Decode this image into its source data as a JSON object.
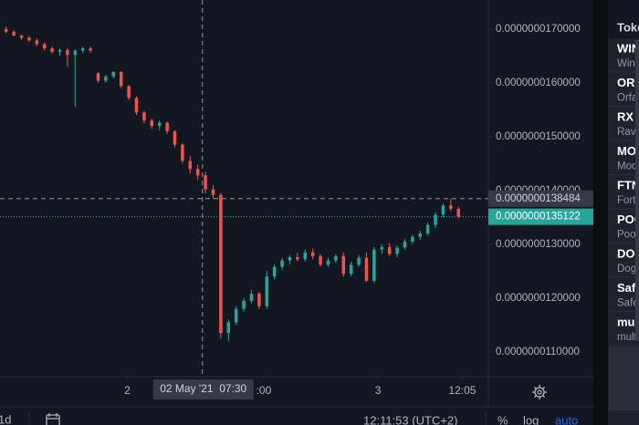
{
  "chart_data": {
    "type": "candlestick",
    "up_color": "#26a69a",
    "down_color": "#ef5350",
    "xlim": [
      -0.8,
      62.9
    ],
    "ylim": [
      1.054e-08,
      1.754e-08
    ],
    "yticks": [
      {
        "value": 1.1e-08,
        "label": "0.0000000110000"
      },
      {
        "value": 1.2e-08,
        "label": "0.0000000120000"
      },
      {
        "value": 1.3e-08,
        "label": "0.0000000130000"
      },
      {
        "value": 1.4e-08,
        "label": "0.0000000140000"
      },
      {
        "value": 1.5e-08,
        "label": "0.0000000150000"
      },
      {
        "value": 1.6e-08,
        "label": "0.0000000160000"
      },
      {
        "value": 1.7e-08,
        "label": "0.0000000170000"
      }
    ],
    "xticks": [
      {
        "value": 15.8,
        "label": "2"
      },
      {
        "value": 33.6,
        "label": ":00"
      },
      {
        "value": 48.5,
        "label": "3"
      },
      {
        "value": 59.5,
        "label": "12:05"
      }
    ],
    "crosshair": {
      "x": 25.6,
      "time": "02 May '21  07:30",
      "price": {
        "value": 1.38484e-08,
        "label": "0.0000000138484"
      }
    },
    "last_price": {
      "value": 1.35122e-08,
      "label": "0.0000000135122",
      "color": "#26a69a"
    },
    "candles": [
      [
        1.7e-08,
        1.705e-08,
        1.692e-08,
        1.695e-08
      ],
      [
        1.695e-08,
        1.698e-08,
        1.686e-08,
        1.688e-08
      ],
      [
        1.688e-08,
        1.69e-08,
        1.68e-08,
        1.684e-08
      ],
      [
        1.684e-08,
        1.687e-08,
        1.676e-08,
        1.679e-08
      ],
      [
        1.679e-08,
        1.683e-08,
        1.668e-08,
        1.672e-08
      ],
      [
        1.672e-08,
        1.675e-08,
        1.66e-08,
        1.664e-08
      ],
      [
        1.664e-08,
        1.668e-08,
        1.654e-08,
        1.658e-08
      ],
      [
        1.658e-08,
        1.664e-08,
        1.65e-08,
        1.661e-08
      ],
      [
        1.661e-08,
        1.665e-08,
        1.63e-08,
        1.652e-08
      ],
      [
        1.652e-08,
        1.662e-08,
        1.555e-08,
        1.66e-08
      ],
      [
        1.66e-08,
        1.668e-08,
        1.655e-08,
        1.664e-08
      ],
      [
        1.664e-08,
        1.668e-08,
        1.656e-08,
        1.66e-08
      ],
      [
        1.618e-08,
        1.62e-08,
        1.6e-08,
        1.604e-08
      ],
      [
        1.604e-08,
        1.615e-08,
        1.6e-08,
        1.612e-08
      ],
      [
        1.612e-08,
        1.622e-08,
        1.608e-08,
        1.62e-08
      ],
      [
        1.62e-08,
        1.622e-08,
        1.59e-08,
        1.594e-08
      ],
      [
        1.594e-08,
        1.596e-08,
        1.568e-08,
        1.572e-08
      ],
      [
        1.572e-08,
        1.575e-08,
        1.54e-08,
        1.545e-08
      ],
      [
        1.545e-08,
        1.548e-08,
        1.525e-08,
        1.53e-08
      ],
      [
        1.53e-08,
        1.534e-08,
        1.515e-08,
        1.52e-08
      ],
      [
        1.52e-08,
        1.53e-08,
        1.512e-08,
        1.526e-08
      ],
      [
        1.526e-08,
        1.528e-08,
        1.505e-08,
        1.51e-08
      ],
      [
        1.51e-08,
        1.512e-08,
        1.48e-08,
        1.485e-08
      ],
      [
        1.485e-08,
        1.488e-08,
        1.45e-08,
        1.455e-08
      ],
      [
        1.455e-08,
        1.465e-08,
        1.432e-08,
        1.44e-08
      ],
      [
        1.44e-08,
        1.448e-08,
        1.42e-08,
        1.428e-08
      ],
      [
        1.428e-08,
        1.435e-08,
        1.395e-08,
        1.402e-08
      ],
      [
        1.402e-08,
        1.41e-08,
        1.385e-08,
        1.392e-08
      ],
      [
        1.392e-08,
        1.395e-08,
        1.125e-08,
        1.135e-08
      ],
      [
        1.135e-08,
        1.16e-08,
        1.12e-08,
        1.155e-08
      ],
      [
        1.155e-08,
        1.185e-08,
        1.15e-08,
        1.18e-08
      ],
      [
        1.18e-08,
        1.2e-08,
        1.175e-08,
        1.195e-08
      ],
      [
        1.195e-08,
        1.215e-08,
        1.19e-08,
        1.208e-08
      ],
      [
        1.208e-08,
        1.212e-08,
        1.18e-08,
        1.185e-08
      ],
      [
        1.185e-08,
        1.25e-08,
        1.18e-08,
        1.24e-08
      ],
      [
        1.24e-08,
        1.262e-08,
        1.235e-08,
        1.258e-08
      ],
      [
        1.258e-08,
        1.275e-08,
        1.252e-08,
        1.27e-08
      ],
      [
        1.27e-08,
        1.28e-08,
        1.262e-08,
        1.276e-08
      ],
      [
        1.276e-08,
        1.285e-08,
        1.268e-08,
        1.272e-08
      ],
      [
        1.272e-08,
        1.29e-08,
        1.268e-08,
        1.285e-08
      ],
      [
        1.285e-08,
        1.292e-08,
        1.272e-08,
        1.278e-08
      ],
      [
        1.278e-08,
        1.282e-08,
        1.258e-08,
        1.262e-08
      ],
      [
        1.262e-08,
        1.275e-08,
        1.258e-08,
        1.27e-08
      ],
      [
        1.27e-08,
        1.282e-08,
        1.265e-08,
        1.278e-08
      ],
      [
        1.278e-08,
        1.285e-08,
        1.24e-08,
        1.245e-08
      ],
      [
        1.245e-08,
        1.268e-08,
        1.24e-08,
        1.262e-08
      ],
      [
        1.262e-08,
        1.28e-08,
        1.258e-08,
        1.275e-08
      ],
      [
        1.275e-08,
        1.285e-08,
        1.23e-08,
        1.232e-08
      ],
      [
        1.232e-08,
        1.295e-08,
        1.228e-08,
        1.29e-08
      ],
      [
        1.29e-08,
        1.3e-08,
        1.282e-08,
        1.295e-08
      ],
      [
        1.295e-08,
        1.302e-08,
        1.278e-08,
        1.282e-08
      ],
      [
        1.282e-08,
        1.298e-08,
        1.276e-08,
        1.294e-08
      ],
      [
        1.294e-08,
        1.31e-08,
        1.29e-08,
        1.305e-08
      ],
      [
        1.305e-08,
        1.318e-08,
        1.3e-08,
        1.314e-08
      ],
      [
        1.314e-08,
        1.325e-08,
        1.308e-08,
        1.32e-08
      ],
      [
        1.32e-08,
        1.34e-08,
        1.316e-08,
        1.336e-08
      ],
      [
        1.336e-08,
        1.36e-08,
        1.33e-08,
        1.355e-08
      ],
      [
        1.355e-08,
        1.376e-08,
        1.35e-08,
        1.372e-08
      ],
      [
        1.372e-08,
        1.385e-08,
        1.362e-08,
        1.366e-08
      ],
      [
        1.366e-08,
        1.37e-08,
        1.348e-08,
        1.351e-08
      ]
    ]
  },
  "toolbar": {
    "interval": "1d",
    "clock": "12:11:53 (UTC+2)",
    "percent": "%",
    "log": "log",
    "auto": "auto"
  },
  "watchlist": {
    "header": "Toke",
    "rows": [
      {
        "symbol": "WIN",
        "name": "Wind"
      },
      {
        "symbol": "ORF",
        "name": "Orfa"
      },
      {
        "symbol": "RX",
        "name": "Rave"
      },
      {
        "symbol": "MO",
        "name": "Moo"
      },
      {
        "symbol": "FTN",
        "name": "Fort"
      },
      {
        "symbol": "POC",
        "name": "Poot"
      },
      {
        "symbol": "DOG",
        "name": "Dog"
      },
      {
        "symbol": "Safe",
        "name": "Safe"
      },
      {
        "symbol": "mult",
        "name": "mult"
      }
    ]
  }
}
